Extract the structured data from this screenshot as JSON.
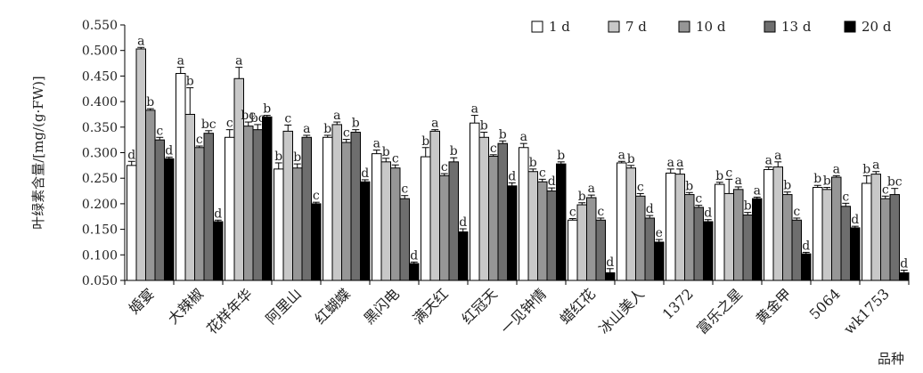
{
  "chart_data": {
    "type": "bar",
    "ylabel": "叶绿素含量/[mg/(g·FW)]",
    "xlabel": "品种",
    "ylim": [
      0.05,
      0.55
    ],
    "yticks": [
      "0.050",
      "0.100",
      "0.150",
      "0.200",
      "0.250",
      "0.300",
      "0.350",
      "0.400",
      "0.450",
      "0.500",
      "0.550"
    ],
    "legend_position": "top-right",
    "colors": [
      "#ffffff",
      "#c8c8c8",
      "#969696",
      "#6e6e6e",
      "#000000"
    ],
    "categories": [
      "婚宴",
      "大辣椒",
      "花样年华",
      "阿里山",
      "红蝴蝶",
      "黑闪电",
      "满天红",
      "红冠天",
      "一见钟情",
      "蜡红花",
      "冰山美人",
      "1372",
      "富乐之星",
      "黄金甲",
      "5064",
      "wk1753"
    ],
    "series": [
      {
        "name": "1 d",
        "values": [
          0.275,
          0.455,
          0.33,
          0.268,
          0.33,
          0.298,
          0.292,
          0.358,
          0.31,
          0.168,
          0.28,
          0.26,
          0.238,
          0.267,
          0.232,
          0.24
        ],
        "errors": [
          0.008,
          0.012,
          0.015,
          0.012,
          0.004,
          0.007,
          0.018,
          0.015,
          0.008,
          0.003,
          0.003,
          0.008,
          0.004,
          0.005,
          0.004,
          0.015
        ],
        "letters": [
          "d",
          "a",
          "c",
          "b",
          "b",
          "a",
          "b",
          "a",
          "a",
          "c",
          "a",
          "a",
          "b",
          "a",
          "b",
          "b"
        ]
      },
      {
        "name": "7 d",
        "values": [
          0.503,
          0.375,
          0.445,
          0.342,
          0.355,
          0.282,
          0.342,
          0.33,
          0.263,
          0.198,
          0.27,
          0.258,
          0.22,
          0.272,
          0.228,
          0.258
        ],
        "errors": [
          0.003,
          0.052,
          0.022,
          0.012,
          0.005,
          0.007,
          0.003,
          0.01,
          0.005,
          0.004,
          0.005,
          0.01,
          0.028,
          0.01,
          0.004,
          0.005
        ],
        "letters": [
          "a",
          "b",
          "a",
          "c",
          "a",
          "b",
          "a",
          "b",
          "b",
          "b",
          "b",
          "a",
          "c",
          "a",
          "b",
          "a"
        ]
      },
      {
        "name": "10 d",
        "values": [
          0.383,
          0.31,
          0.352,
          0.27,
          0.32,
          0.27,
          0.255,
          0.293,
          0.243,
          0.212,
          0.215,
          0.218,
          0.228,
          0.218,
          0.252,
          0.21
        ],
        "errors": [
          0.003,
          0.003,
          0.008,
          0.008,
          0.006,
          0.006,
          0.004,
          0.003,
          0.005,
          0.005,
          0.005,
          0.004,
          0.005,
          0.005,
          0.003,
          0.005
        ],
        "letters": [
          "b",
          "c",
          "bc",
          "b",
          "c",
          "c",
          "c",
          "c",
          "c",
          "a",
          "c",
          "b",
          "a",
          "b",
          "a",
          "c"
        ]
      },
      {
        "name": "13 d",
        "values": [
          0.325,
          0.338,
          0.345,
          0.33,
          0.34,
          0.21,
          0.282,
          0.318,
          0.225,
          0.168,
          0.172,
          0.193,
          0.178,
          0.168,
          0.195,
          0.218
        ],
        "errors": [
          0.005,
          0.005,
          0.01,
          0.004,
          0.005,
          0.006,
          0.008,
          0.005,
          0.006,
          0.004,
          0.005,
          0.004,
          0.005,
          0.004,
          0.006,
          0.012
        ],
        "letters": [
          "c",
          "bc",
          "bc",
          "a",
          "b",
          "c",
          "b",
          "b",
          "d",
          "c",
          "d",
          "c",
          "b",
          "c",
          "c",
          "bc"
        ]
      },
      {
        "name": "20 d",
        "values": [
          0.288,
          0.165,
          0.37,
          0.2,
          0.243,
          0.083,
          0.145,
          0.235,
          0.278,
          0.065,
          0.125,
          0.165,
          0.21,
          0.102,
          0.153,
          0.065
        ],
        "errors": [
          0.003,
          0.003,
          0.003,
          0.003,
          0.004,
          0.003,
          0.006,
          0.006,
          0.004,
          0.008,
          0.005,
          0.004,
          0.003,
          0.003,
          0.003,
          0.005
        ],
        "letters": [
          "d",
          "d",
          "b",
          "c",
          "d",
          "d",
          "d",
          "d",
          "b",
          "d",
          "e",
          "d",
          "a",
          "d",
          "d",
          "d"
        ]
      }
    ]
  }
}
